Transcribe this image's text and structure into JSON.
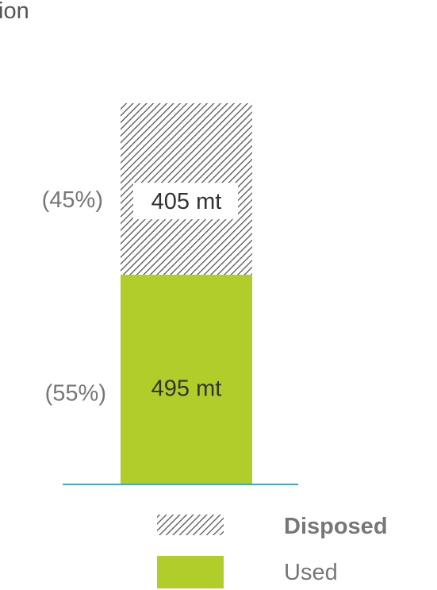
{
  "top_cropped_text": "ion",
  "chart_data": {
    "type": "bar",
    "stacked": true,
    "categories": [
      ""
    ],
    "series": [
      {
        "name": "Used",
        "values": [
          495
        ],
        "label": "495 mt",
        "percent_label": "(55%)",
        "color": "#b1cd2a",
        "pattern": "solid"
      },
      {
        "name": "Disposed",
        "values": [
          405
        ],
        "label": "405 mt",
        "percent_label": "(45%)",
        "color": "#555555",
        "pattern": "hatch"
      }
    ],
    "unit": "mt",
    "ylim": [
      0,
      900
    ],
    "title": "",
    "xlabel": "",
    "ylabel": "",
    "legend": {
      "placement": "bottom-right",
      "items": [
        {
          "name": "Disposed",
          "bold": true,
          "pattern": "hatch"
        },
        {
          "name": "Used",
          "bold": false,
          "pattern": "solid"
        }
      ]
    },
    "baseline_color": "#3fa5db",
    "grid": false
  }
}
